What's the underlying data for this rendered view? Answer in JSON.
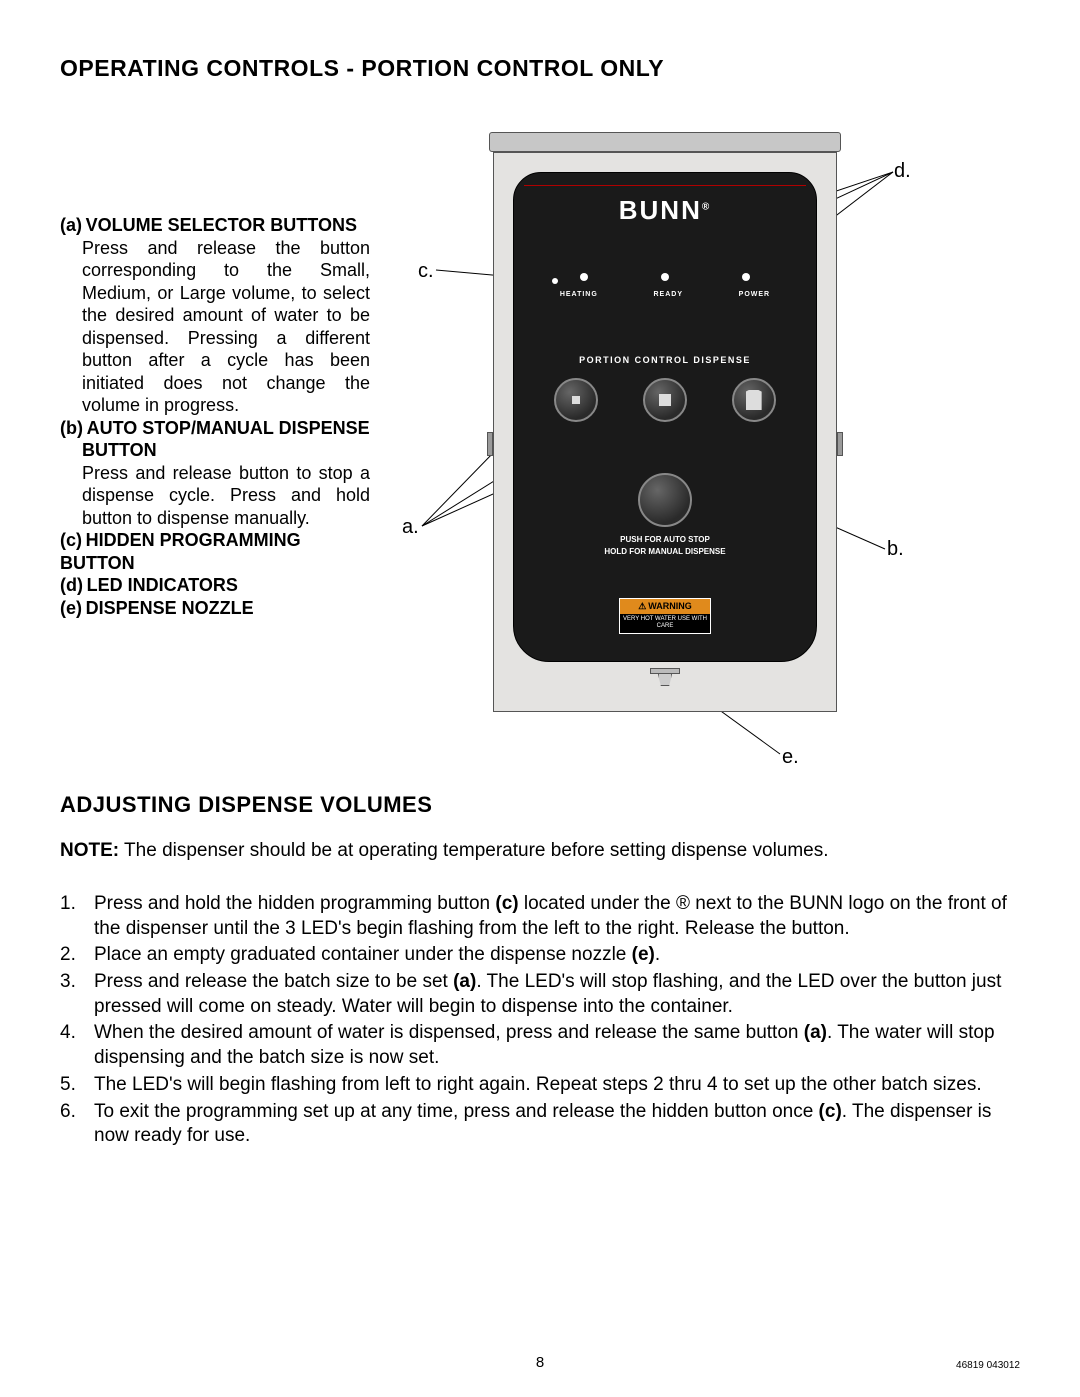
{
  "title": "OPERATING CONTROLS - PORTION CONTROL ONLY",
  "controls": {
    "a": {
      "head": "(a) VOLUME SELECTOR BUTTONS",
      "body": "Press and release the button corresponding to the Small, Medium, or Large volume, to select the desired amount of water to be dispensed. Pressing a different button after a cycle has been initiated does not change the volume in progress."
    },
    "b": {
      "head": "(b) AUTO STOP/MANUAL DISPENSE BUTTON",
      "body": "Press and release button to stop a dispense cycle. Press and hold button to dispense manually."
    },
    "c": {
      "head": "(c) HIDDEN PROGRAMMING BUTTON"
    },
    "d": {
      "head": "(d) LED INDICATORS"
    },
    "e": {
      "head": "(e) DISPENSE NOZZLE"
    }
  },
  "diagram": {
    "brand": "BUNN",
    "led_labels": [
      "HEATING",
      "READY",
      "POWER"
    ],
    "portion_label": "PORTION  CONTROL  DISPENSE",
    "instr1": "PUSH FOR AUTO STOP",
    "instr2": "HOLD FOR MANUAL DISPENSE",
    "warn_head": "WARNING",
    "warn_body": "VERY HOT WATER\nUSE WITH\nCARE",
    "callouts": {
      "a": "a.",
      "b": "b.",
      "c": "c.",
      "d": "d.",
      "e": "e."
    },
    "colors": {
      "panel_bg": "#1a1a1a",
      "chassis": "#e4e3e1",
      "accent_line": "#b00000",
      "warn_bg": "#e08a1c"
    }
  },
  "section2_title": "ADJUSTING DISPENSE VOLUMES",
  "note_label": "NOTE:",
  "note_body": " The dispenser should be at operating temperature before setting dispense volumes.",
  "steps": [
    "Press and hold the hidden programming button <b>(c)</b> located under the ® next to the BUNN logo on the front of the dispenser until the 3 LED's begin flashing from the left to the right. Release the button.",
    "Place an empty graduated container under the dispense nozzle <b>(e)</b>.",
    "Press and release the batch size to be set <b>(a)</b>. The LED's will stop flashing, and the LED over the button just pressed will come on steady. Water will begin to dispense into the container.",
    "When the desired amount of water is dispensed, press and release the same button <b>(a)</b>. The water will stop dispensing and the batch size is now set.",
    "The LED's will begin flashing from left to right again. Repeat steps 2 thru 4 to set up the other batch sizes.",
    "To exit the programming set up at any time, press and release the hidden button once <b>(c)</b>. The dispenser is now ready for use."
  ],
  "page_number": "8",
  "doc_id": "46819 043012"
}
